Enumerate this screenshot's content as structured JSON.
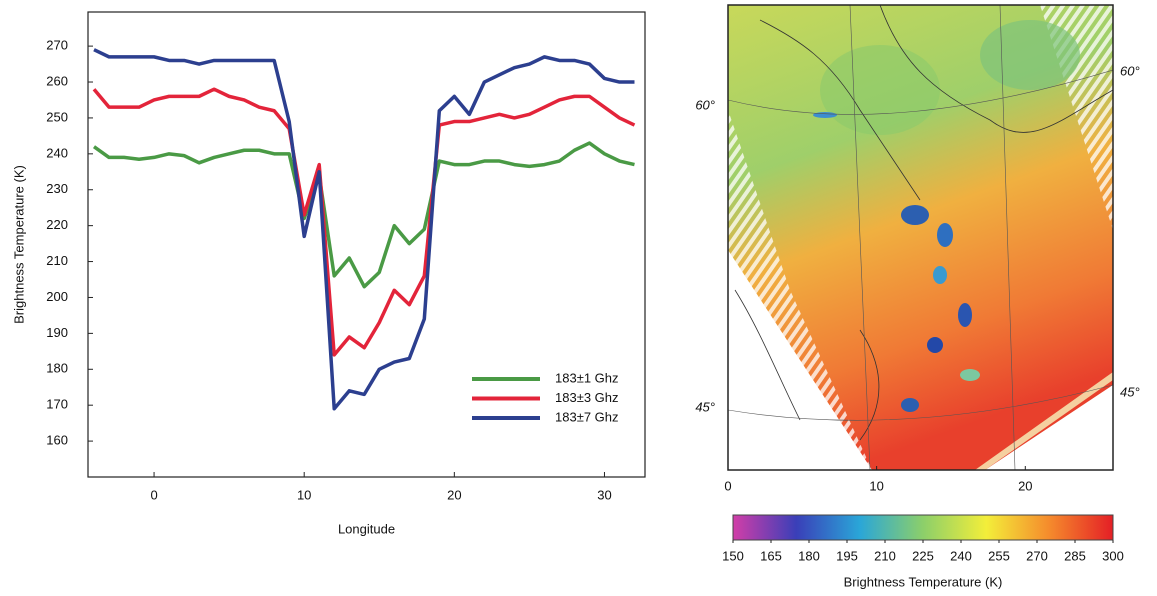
{
  "chart_data": [
    {
      "type": "line",
      "xlabel": "Longitude",
      "ylabel": "Brightness Temperature (K)",
      "x": [
        -4,
        -3,
        -2,
        -1,
        0,
        1,
        2,
        3,
        4,
        5,
        6,
        7,
        8,
        9,
        10,
        11,
        12,
        13,
        14,
        15,
        16,
        17,
        18,
        19,
        20,
        21,
        22,
        23,
        24,
        25,
        26,
        27,
        28,
        29,
        30,
        31,
        32
      ],
      "series": [
        {
          "name": "183±1 Ghz",
          "color": "#4a9a45",
          "values": [
            242,
            239,
            239,
            238.5,
            239,
            240,
            239.5,
            237.5,
            239,
            240,
            241,
            241,
            240,
            240,
            222,
            234,
            206,
            211,
            203,
            207,
            220,
            215,
            219,
            238,
            237,
            237,
            238,
            238,
            237,
            236.5,
            237,
            238,
            241,
            243,
            240,
            238,
            237
          ]
        },
        {
          "name": "183±3 Ghz",
          "color": "#e3243a",
          "values": [
            258,
            253,
            253,
            253,
            255,
            256,
            256,
            256,
            258,
            256,
            255,
            253,
            252,
            247,
            223,
            237,
            184,
            189,
            186,
            193,
            202,
            198,
            206,
            248,
            249,
            249,
            250,
            251,
            250,
            251,
            253,
            255,
            256,
            256,
            253,
            250,
            248
          ]
        },
        {
          "name": "183±7 Ghz",
          "color": "#2c3f8f",
          "values": [
            269,
            267,
            267,
            267,
            267,
            266,
            266,
            265,
            266,
            266,
            266,
            266,
            266,
            249,
            217,
            235,
            169,
            174,
            173,
            180,
            182,
            183,
            194,
            252,
            256,
            251,
            260,
            262,
            264,
            265,
            267,
            266,
            266,
            265,
            261,
            260,
            260
          ]
        }
      ],
      "xlim": [
        -4.4,
        32.7
      ],
      "xticks": [
        0,
        10,
        20,
        30
      ],
      "ylim": [
        150,
        279.5
      ],
      "yticks": [
        160,
        170,
        180,
        190,
        200,
        210,
        220,
        230,
        240,
        250,
        260,
        270
      ],
      "legend": "lower right"
    },
    {
      "type": "map",
      "xlim": [
        0,
        25.9
      ],
      "xticks": [
        0,
        10,
        20
      ],
      "lat_labels": [
        "60°",
        "45°"
      ],
      "colorbar": {
        "lim": [
          150,
          300
        ],
        "ticks": [
          150,
          165,
          180,
          195,
          210,
          225,
          240,
          255,
          270,
          285,
          300
        ],
        "colors": [
          "#d23ea8",
          "#3a3fb8",
          "#2aa6d8",
          "#8ccf6a",
          "#f3ee3a",
          "#f58a2c",
          "#e41f26"
        ],
        "label": "Brightness Temperature (K)"
      }
    }
  ]
}
